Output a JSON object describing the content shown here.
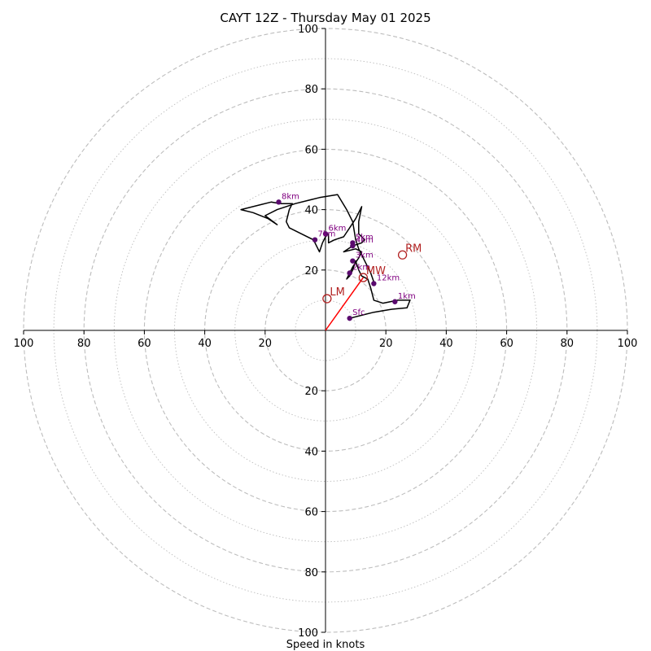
{
  "chart_data": {
    "type": "hodograph",
    "title": "CAYT 12Z - Thursday May 01 2025",
    "xlabel": "Speed in knots",
    "units": "knots",
    "range": [
      -100,
      100
    ],
    "major_ring_step": 20,
    "minor_ring_step": 10,
    "ticks": {
      "x_left": [
        "100",
        "80",
        "60",
        "40",
        "20"
      ],
      "x_right": [
        "20",
        "40",
        "60",
        "80",
        "100"
      ],
      "y_up": [
        "20",
        "40",
        "60",
        "80",
        "100"
      ],
      "y_down": [
        "20",
        "40",
        "60",
        "80",
        "100"
      ]
    },
    "colors": {
      "trace": "#000000",
      "height_points": "#5a0a6e",
      "height_labels": "#800080",
      "storm_markers": "#b22222",
      "mean_wind_vector": "#ff0000",
      "grid": "#bdbdbd"
    },
    "trace": [
      [
        8,
        4
      ],
      [
        12,
        5
      ],
      [
        16,
        6
      ],
      [
        22,
        7
      ],
      [
        27,
        7.5
      ],
      [
        28,
        10
      ],
      [
        24,
        10
      ],
      [
        19,
        9
      ],
      [
        16,
        10
      ],
      [
        15,
        14
      ],
      [
        14,
        17
      ],
      [
        12,
        18
      ],
      [
        11,
        20
      ],
      [
        10,
        23
      ],
      [
        9,
        20
      ],
      [
        8,
        18
      ],
      [
        7,
        17
      ],
      [
        9,
        21
      ],
      [
        11,
        24
      ],
      [
        12,
        26
      ],
      [
        10,
        27
      ],
      [
        6,
        26
      ],
      [
        9,
        28
      ],
      [
        12,
        29
      ],
      [
        13,
        30
      ],
      [
        11,
        32
      ],
      [
        11,
        36
      ],
      [
        12,
        41
      ],
      [
        10,
        37
      ],
      [
        8,
        34
      ],
      [
        6,
        31
      ],
      [
        3,
        30
      ],
      [
        1,
        29
      ],
      [
        1,
        32
      ],
      [
        0,
        31
      ],
      [
        -1,
        29
      ],
      [
        -2,
        26
      ],
      [
        -4,
        30
      ],
      [
        -8,
        32
      ],
      [
        -12,
        34
      ],
      [
        -13,
        36
      ],
      [
        -12,
        40
      ],
      [
        -11,
        42
      ],
      [
        -15,
        42
      ],
      [
        -18,
        42.5
      ],
      [
        -22,
        41.5
      ],
      [
        -28,
        40
      ],
      [
        -24,
        39
      ],
      [
        -19,
        37
      ],
      [
        -16,
        35
      ],
      [
        -20,
        38
      ],
      [
        -16,
        40
      ],
      [
        -10,
        42
      ],
      [
        -6,
        43
      ],
      [
        -2,
        44
      ],
      [
        4,
        45
      ],
      [
        7,
        40
      ],
      [
        9,
        36
      ],
      [
        10,
        30
      ],
      [
        11,
        27
      ],
      [
        12,
        25
      ],
      [
        13,
        23
      ],
      [
        14,
        21
      ],
      [
        15,
        19
      ],
      [
        16,
        16
      ],
      [
        16,
        15.5
      ]
    ],
    "height_points": [
      {
        "label": "Sfc",
        "u": 8,
        "v": 4
      },
      {
        "label": "1km",
        "u": 23,
        "v": 9.5
      },
      {
        "label": "2km",
        "u": 8,
        "v": 19
      },
      {
        "label": "3km",
        "u": 9,
        "v": 23
      },
      {
        "label": "4km",
        "u": 9,
        "v": 28
      },
      {
        "label": "5km",
        "u": 9,
        "v": 29
      },
      {
        "label": "6km",
        "u": 0,
        "v": 32
      },
      {
        "label": "7km",
        "u": -3.5,
        "v": 30
      },
      {
        "label": "8km",
        "u": -15.5,
        "v": 42.5
      },
      {
        "label": "12km",
        "u": 16,
        "v": 15.5
      }
    ],
    "storm_motion": [
      {
        "label": "RM",
        "u": 25.5,
        "v": 25
      },
      {
        "label": "LM",
        "u": 0.5,
        "v": 10.5
      },
      {
        "label": "MW",
        "u": 12.5,
        "v": 17.5
      }
    ],
    "mean_wind_vector": {
      "from": [
        0,
        0
      ],
      "to": [
        12.5,
        17.5
      ]
    }
  }
}
